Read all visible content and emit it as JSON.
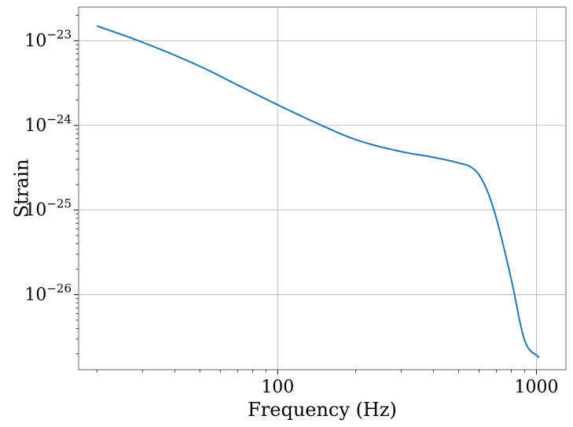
{
  "chart_data": {
    "type": "line",
    "title": "",
    "xlabel": "Frequency (Hz)",
    "ylabel": "Strain",
    "x_scale": "log",
    "y_scale": "log",
    "xlim": [
      17,
      1300
    ],
    "ylim": [
      1.3e-27,
      2.5e-23
    ],
    "grid": true,
    "x_ticks": [
      {
        "value": 100,
        "label": "100"
      },
      {
        "value": 1000,
        "label": "1000"
      }
    ],
    "y_ticks": [
      {
        "value": 1e-23,
        "mantissa": "10",
        "exp": "−23"
      },
      {
        "value": 1e-24,
        "mantissa": "10",
        "exp": "−24"
      },
      {
        "value": 1e-25,
        "mantissa": "10",
        "exp": "−25"
      },
      {
        "value": 1e-26,
        "mantissa": "10",
        "exp": "−26"
      }
    ],
    "color": "#1f77b4",
    "series": [
      {
        "x": [
          20,
          30,
          50,
          70,
          100,
          150,
          200,
          300,
          400,
          500,
          560,
          600,
          650,
          700,
          800,
          900,
          1024
        ],
        "y": [
          1.5e-23,
          9.6e-24,
          5e-24,
          3e-24,
          1.75e-24,
          9.8e-25,
          6.8e-25,
          4.9e-25,
          4.2e-25,
          3.6e-25,
          3.2e-25,
          2.6e-25,
          1.6e-25,
          8e-26,
          1.5e-26,
          2.9e-27,
          1.8e-27
        ]
      }
    ]
  }
}
